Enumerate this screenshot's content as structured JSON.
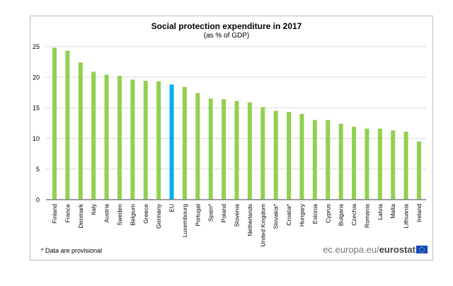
{
  "chart_data": {
    "type": "bar",
    "title": "Social protection expenditure in 2017",
    "subtitle": "(as % of GDP)",
    "categories": [
      "Finland",
      "France",
      "Denmark",
      "Italy",
      "Austria",
      "Sweden",
      "Belgium",
      "Greece",
      "Germany",
      "EU",
      "Luxembourg",
      "Portugal",
      "Spain*",
      "Poland",
      "Slovenia",
      "Netherlands",
      "United Kingdom",
      "Slovakia*",
      "Croatia*",
      "Hungary",
      "Estonia",
      "Cyprus",
      "Bulgaria",
      "Czechia",
      "Romania",
      "Latvia",
      "Malta",
      "Lithuania",
      "Ireland"
    ],
    "values": [
      24.8,
      24.3,
      22.4,
      20.9,
      20.4,
      20.2,
      19.6,
      19.4,
      19.3,
      18.8,
      18.4,
      17.4,
      16.5,
      16.4,
      16.1,
      15.9,
      15.1,
      14.5,
      14.3,
      14.0,
      13.0,
      13.0,
      12.4,
      11.9,
      11.6,
      11.6,
      11.3,
      11.1,
      9.5
    ],
    "highlight": "EU",
    "colors": {
      "bar": "#92d050",
      "highlight": "#00b0f0",
      "grid": "#c8c8c8",
      "axis": "#808080"
    },
    "ylim": [
      0,
      25
    ],
    "yticks": [
      "0",
      "5",
      "10",
      "15",
      "20",
      "25"
    ],
    "grid": true,
    "xlabel": "",
    "ylabel": ""
  },
  "footnote": "* Data are provisional",
  "brand": {
    "prefix": "ec.europa.eu/",
    "name": "eurostat",
    "icon": "eu-flag-icon"
  }
}
